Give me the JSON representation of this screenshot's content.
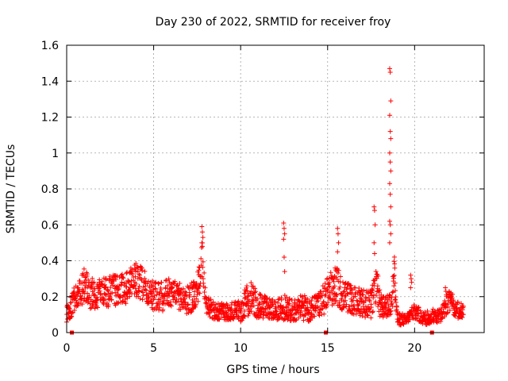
{
  "chart_data": {
    "type": "scatter",
    "title": "Day 230 of 2022, SRMTID for receiver froy",
    "xlabel": "GPS time / hours",
    "ylabel": "SRMTID / TECUs",
    "xlim": [
      0,
      24
    ],
    "ylim": [
      0,
      1.6
    ],
    "xticks": [
      0,
      5,
      10,
      15,
      20
    ],
    "yticks": [
      0,
      0.2,
      0.4,
      0.6,
      0.8,
      1,
      1.2,
      1.4,
      1.6
    ],
    "ytick_labels": [
      "0",
      "0.2",
      "0.4",
      "0.6",
      "0.8",
      "1",
      "1.2",
      "1.4",
      "1.6"
    ],
    "grid": true,
    "marker": "+",
    "color": "#ff0000",
    "x_axis_markers": [
      0.3,
      14.9,
      21.0
    ],
    "envelope": {
      "x": [
        0,
        0.3,
        0.6,
        1.0,
        1.5,
        2.0,
        2.5,
        3.0,
        3.5,
        4.0,
        4.5,
        5.0,
        5.5,
        6.0,
        6.5,
        7.0,
        7.5,
        7.8,
        8.0,
        8.5,
        9.0,
        9.5,
        10.0,
        10.5,
        11.0,
        11.5,
        12.0,
        12.5,
        13.0,
        13.5,
        14.0,
        14.5,
        15.0,
        15.5,
        16.0,
        16.5,
        17.0,
        17.5,
        17.8,
        18.0,
        18.3,
        18.6,
        18.8,
        19.0,
        19.5,
        20.0,
        20.5,
        21.0,
        21.5,
        22.0,
        22.5,
        22.8
      ],
      "center": [
        0.1,
        0.16,
        0.2,
        0.26,
        0.21,
        0.22,
        0.23,
        0.24,
        0.25,
        0.3,
        0.25,
        0.2,
        0.2,
        0.22,
        0.2,
        0.18,
        0.22,
        0.4,
        0.15,
        0.12,
        0.12,
        0.12,
        0.12,
        0.2,
        0.15,
        0.14,
        0.12,
        0.14,
        0.12,
        0.14,
        0.13,
        0.15,
        0.22,
        0.26,
        0.2,
        0.18,
        0.17,
        0.15,
        0.3,
        0.15,
        0.14,
        0.15,
        0.35,
        0.08,
        0.07,
        0.12,
        0.08,
        0.09,
        0.1,
        0.18,
        0.12,
        0.12
      ],
      "spread": [
        0.05,
        0.07,
        0.08,
        0.1,
        0.09,
        0.08,
        0.09,
        0.08,
        0.09,
        0.1,
        0.09,
        0.08,
        0.08,
        0.09,
        0.08,
        0.08,
        0.09,
        0.12,
        0.06,
        0.05,
        0.05,
        0.05,
        0.06,
        0.1,
        0.07,
        0.06,
        0.06,
        0.07,
        0.06,
        0.07,
        0.07,
        0.07,
        0.1,
        0.11,
        0.09,
        0.08,
        0.08,
        0.08,
        0.12,
        0.07,
        0.06,
        0.07,
        0.18,
        0.04,
        0.03,
        0.04,
        0.04,
        0.04,
        0.04,
        0.06,
        0.05,
        0.04
      ]
    },
    "spikes": [
      {
        "x": 7.8,
        "values": [
          0.59,
          0.56,
          0.53,
          0.5,
          0.48
        ]
      },
      {
        "x": 12.5,
        "values": [
          0.61,
          0.58,
          0.55,
          0.52,
          0.42,
          0.34
        ]
      },
      {
        "x": 15.6,
        "values": [
          0.58,
          0.55,
          0.5,
          0.45
        ]
      },
      {
        "x": 17.7,
        "values": [
          0.7,
          0.68,
          0.6,
          0.5,
          0.44
        ]
      },
      {
        "x": 18.6,
        "values": [
          1.47,
          1.45,
          1.29,
          1.21,
          1.12,
          1.08,
          1.0,
          0.95,
          0.9,
          0.83,
          0.77,
          0.7,
          0.62,
          0.6,
          0.55,
          0.5
        ]
      },
      {
        "x": 19.8,
        "values": [
          0.32,
          0.3,
          0.28,
          0.25
        ]
      },
      {
        "x": 21.8,
        "values": [
          0.25,
          0.23,
          0.21
        ]
      }
    ]
  }
}
